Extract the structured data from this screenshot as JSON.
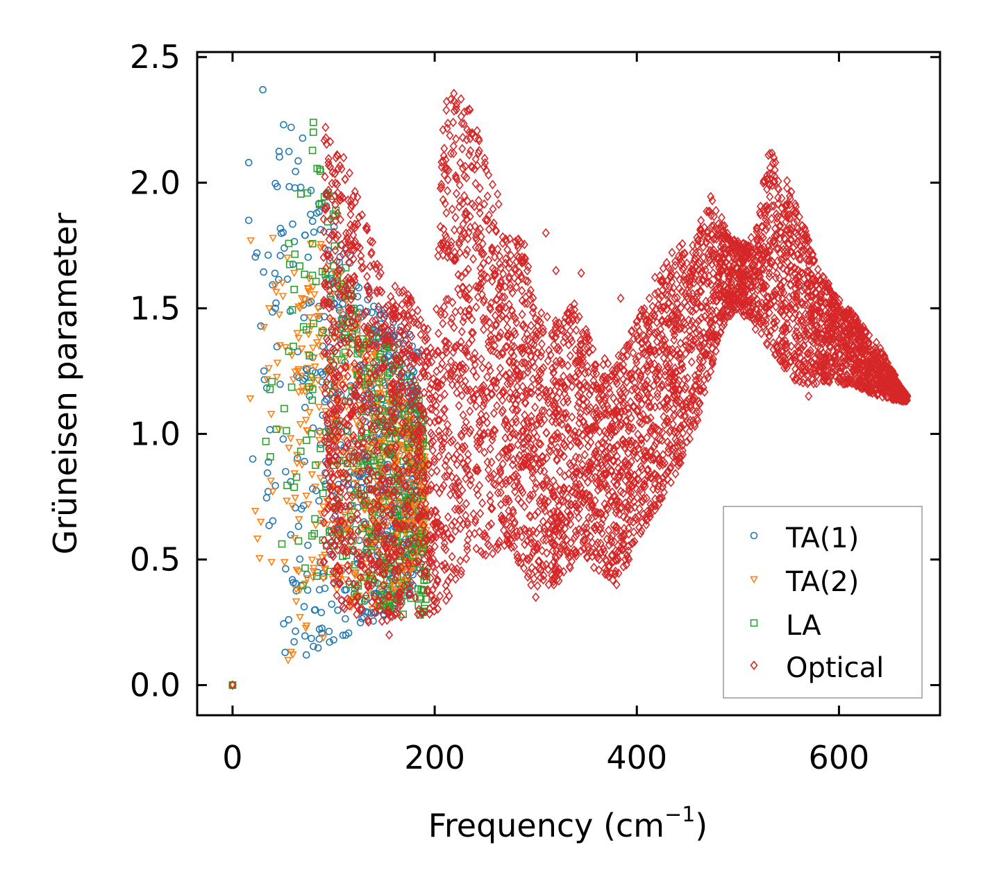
{
  "chart_data": {
    "type": "scatter",
    "title": "",
    "xlabel": "Frequency (cm",
    "xlabel_sup": "−1",
    "xlabel_close": ")",
    "ylabel": "Grüneisen parameter",
    "xlim": [
      -35,
      700
    ],
    "ylim": [
      -0.12,
      2.52
    ],
    "xticks": [
      0,
      200,
      400,
      600
    ],
    "xtick_labels": [
      "0",
      "200",
      "400",
      "600"
    ],
    "yticks": [
      0.0,
      0.5,
      1.0,
      1.5,
      2.0,
      2.5
    ],
    "ytick_labels": [
      "0.0",
      "0.5",
      "1.0",
      "1.5",
      "2.0",
      "2.5"
    ],
    "legend_position": "lower-right",
    "series": [
      {
        "name": "TA(1)",
        "marker": "circle",
        "color": "#1f77b4",
        "envelope": [
          [
            0,
            0.0,
            0.0
          ],
          [
            15,
            1.7,
            2.1
          ],
          [
            30,
            0.75,
            2.38
          ],
          [
            50,
            0.12,
            2.25
          ],
          [
            80,
            0.12,
            2.2
          ],
          [
            100,
            0.18,
            1.9
          ],
          [
            120,
            0.2,
            1.7
          ],
          [
            140,
            0.25,
            1.55
          ],
          [
            160,
            0.3,
            1.45
          ],
          [
            175,
            0.35,
            1.4
          ],
          [
            185,
            0.45,
            1.35
          ]
        ]
      },
      {
        "name": "TA(2)",
        "marker": "triangle-down",
        "color": "#ff7f0e",
        "envelope": [
          [
            0,
            0.0,
            0.0
          ],
          [
            15,
            0.6,
            1.8
          ],
          [
            40,
            0.35,
            1.78
          ],
          [
            60,
            0.1,
            1.7
          ],
          [
            80,
            0.3,
            1.8
          ],
          [
            100,
            0.3,
            1.7
          ],
          [
            120,
            0.3,
            1.55
          ],
          [
            140,
            0.3,
            1.35
          ],
          [
            160,
            0.3,
            1.2
          ],
          [
            180,
            0.45,
            1.05
          ],
          [
            192,
            0.55,
            0.95
          ]
        ]
      },
      {
        "name": "LA",
        "marker": "square",
        "color": "#2ca02c",
        "envelope": [
          [
            0,
            0.0,
            0.0
          ],
          [
            30,
            0.9,
            1.2
          ],
          [
            50,
            0.4,
            1.8
          ],
          [
            80,
            0.35,
            2.25
          ],
          [
            100,
            0.35,
            1.95
          ],
          [
            120,
            0.3,
            1.55
          ],
          [
            140,
            0.3,
            1.45
          ],
          [
            160,
            0.3,
            1.35
          ],
          [
            180,
            0.25,
            1.2
          ],
          [
            192,
            0.3,
            1.1
          ]
        ]
      },
      {
        "name": "Optical",
        "marker": "diamond",
        "color": "#d62728",
        "envelope": [
          [
            0,
            0.0,
            0.0
          ],
          [
            90,
            0.45,
            2.22
          ],
          [
            110,
            0.3,
            2.1
          ],
          [
            130,
            0.25,
            1.9
          ],
          [
            150,
            0.25,
            1.62
          ],
          [
            180,
            0.28,
            1.55
          ],
          [
            200,
            0.27,
            1.35
          ],
          [
            208,
            0.3,
            2.3
          ],
          [
            220,
            0.35,
            2.38
          ],
          [
            235,
            0.55,
            2.3
          ],
          [
            255,
            0.5,
            2.05
          ],
          [
            270,
            0.55,
            1.85
          ],
          [
            290,
            0.45,
            1.75
          ],
          [
            300,
            0.35,
            1.5
          ],
          [
            320,
            0.4,
            1.45
          ],
          [
            340,
            0.48,
            1.55
          ],
          [
            360,
            0.45,
            1.3
          ],
          [
            380,
            0.4,
            1.3
          ],
          [
            400,
            0.55,
            1.45
          ],
          [
            420,
            0.7,
            1.65
          ],
          [
            440,
            0.85,
            1.75
          ],
          [
            460,
            1.05,
            1.8
          ],
          [
            470,
            1.2,
            1.98
          ],
          [
            480,
            1.35,
            1.9
          ],
          [
            490,
            1.45,
            1.8
          ],
          [
            500,
            1.5,
            1.78
          ],
          [
            510,
            1.45,
            1.75
          ],
          [
            520,
            1.4,
            1.85
          ],
          [
            530,
            1.35,
            2.15
          ],
          [
            545,
            1.25,
            2.05
          ],
          [
            560,
            1.2,
            1.9
          ],
          [
            580,
            1.2,
            1.65
          ],
          [
            600,
            1.2,
            1.55
          ],
          [
            620,
            1.18,
            1.45
          ],
          [
            640,
            1.15,
            1.35
          ],
          [
            660,
            1.13,
            1.2
          ],
          [
            668,
            1.13,
            1.15
          ]
        ]
      }
    ],
    "outliers": {
      "TA(1)": [
        [
          30,
          2.37
        ],
        [
          16,
          2.08
        ],
        [
          58,
          2.22
        ],
        [
          16,
          1.85
        ],
        [
          20,
          0.9
        ],
        [
          73,
          0.12
        ],
        [
          52,
          0.13
        ],
        [
          100,
          0.18
        ]
      ],
      "TA(2)": [
        [
          18,
          1.77
        ],
        [
          40,
          1.78
        ],
        [
          28,
          0.65
        ],
        [
          55,
          0.1
        ],
        [
          90,
          0.19
        ]
      ],
      "LA": [
        [
          80,
          2.24
        ],
        [
          0,
          0.0
        ],
        [
          33,
          0.97
        ],
        [
          190,
          0.45
        ]
      ],
      "Optical": [
        [
          92,
          2.22
        ],
        [
          380,
          0.4
        ],
        [
          310,
          1.8
        ],
        [
          384,
          1.54
        ],
        [
          580,
          1.25
        ],
        [
          570,
          1.15
        ],
        [
          320,
          1.65
        ],
        [
          345,
          1.64
        ],
        [
          440,
          1.52
        ],
        [
          300,
          0.35
        ],
        [
          155,
          0.2
        ]
      ]
    }
  },
  "legend": {
    "items": [
      {
        "label": "TA(1)",
        "color": "#1f77b4",
        "marker": "circle-icon"
      },
      {
        "label": "TA(2)",
        "color": "#ff7f0e",
        "marker": "triangle-down-icon"
      },
      {
        "label": "LA",
        "color": "#2ca02c",
        "marker": "square-icon"
      },
      {
        "label": "Optical",
        "color": "#d62728",
        "marker": "diamond-icon"
      }
    ]
  }
}
